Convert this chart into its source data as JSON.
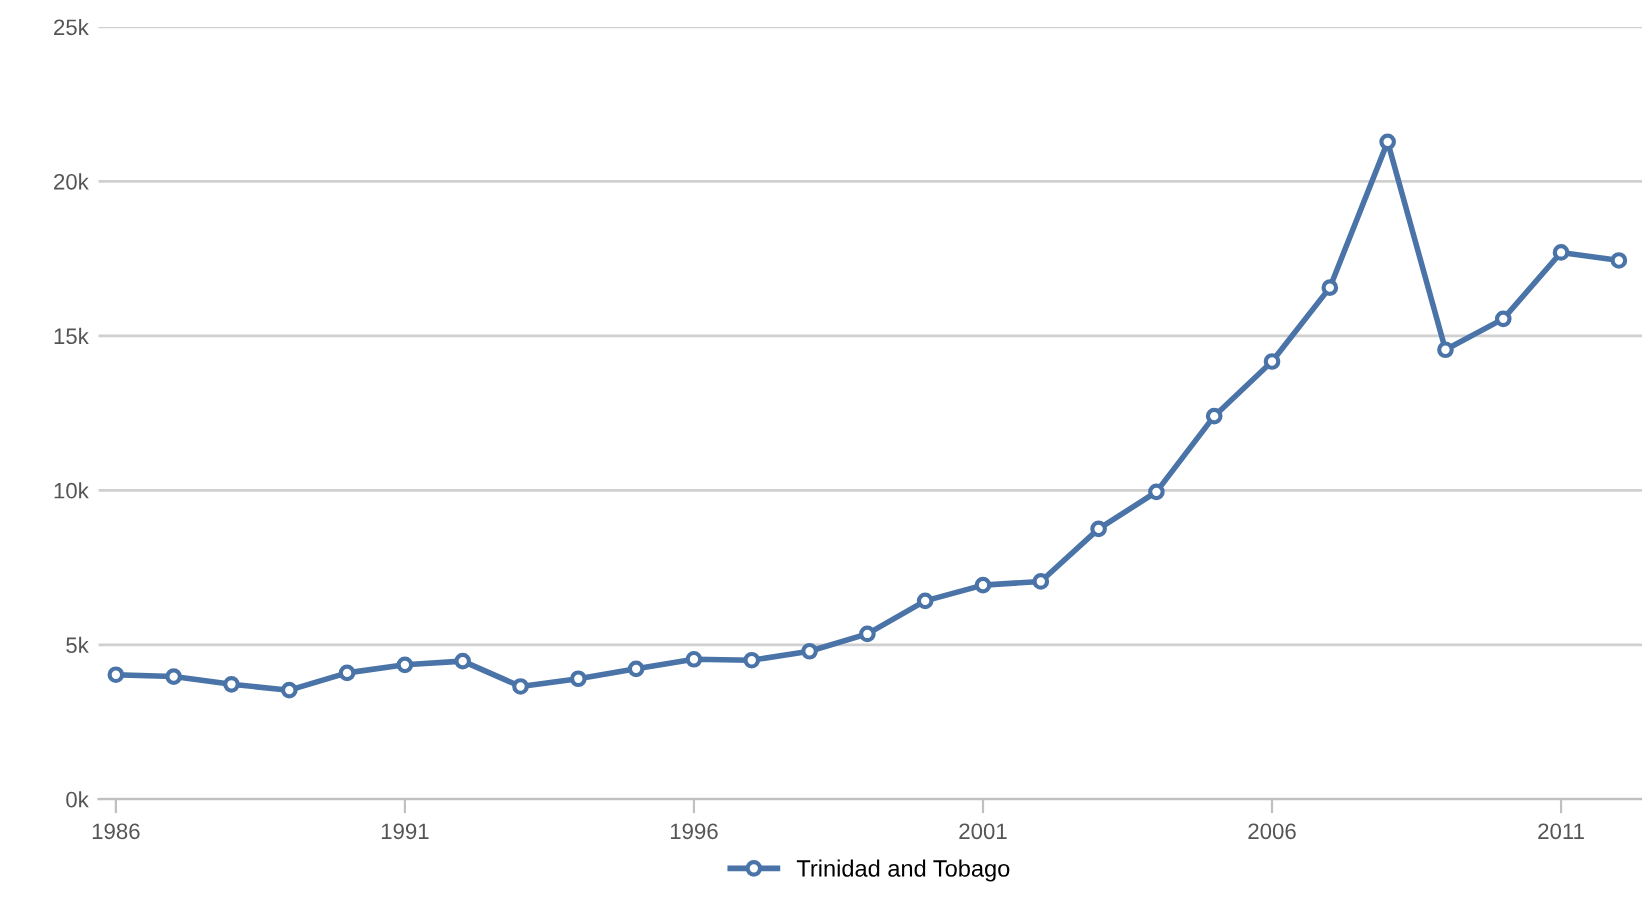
{
  "chart_data": {
    "type": "line",
    "x": [
      1986,
      1987,
      1988,
      1989,
      1990,
      1991,
      1992,
      1993,
      1994,
      1995,
      1996,
      1997,
      1998,
      1999,
      2000,
      2001,
      2002,
      2003,
      2004,
      2005,
      2006,
      2007,
      2008,
      2009,
      2010,
      2011,
      2012
    ],
    "series": [
      {
        "name": "Trinidad and Tobago",
        "color": "#4a73a8",
        "values": [
          4030,
          3970,
          3720,
          3530,
          4090,
          4350,
          4470,
          3650,
          3900,
          4220,
          4530,
          4500,
          4790,
          5350,
          6420,
          6930,
          7050,
          8750,
          9950,
          12400,
          14170,
          16560,
          21280,
          14550,
          15550,
          17700,
          17440
        ]
      }
    ],
    "xlim": [
      1985.7,
      2012.4
    ],
    "xticks": [
      1986,
      1991,
      1996,
      2001,
      2006,
      2011
    ],
    "ylim": [
      0,
      25000
    ],
    "yticks": [
      {
        "value": 0,
        "label": "0k"
      },
      {
        "value": 5000,
        "label": "5k"
      },
      {
        "value": 10000,
        "label": "10k"
      },
      {
        "value": 15000,
        "label": "15k"
      },
      {
        "value": 20000,
        "label": "20k"
      },
      {
        "value": 25000,
        "label": "25k"
      }
    ],
    "grid": "y",
    "legend": "bottom",
    "marker": "circle",
    "line_style": "solid"
  }
}
